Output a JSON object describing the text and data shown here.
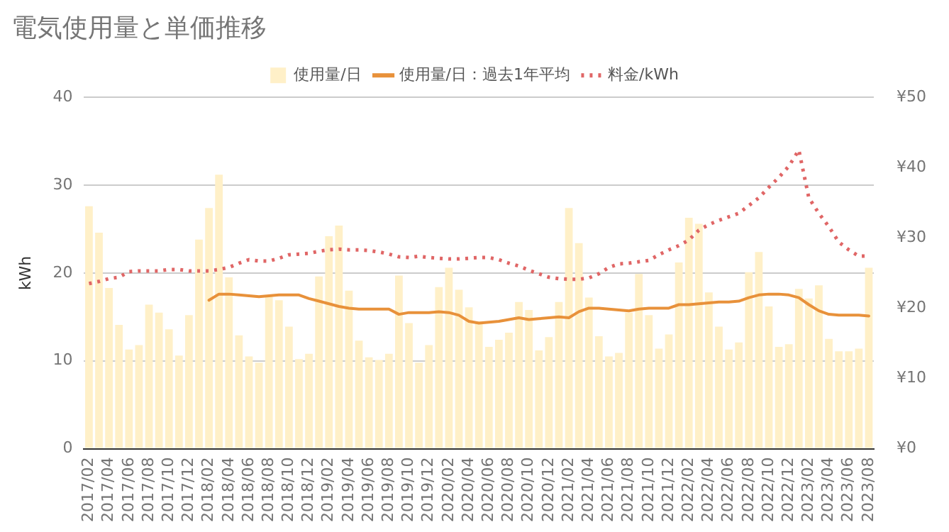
{
  "chart_data": {
    "type": "bar",
    "title": "電気使用量と単価推移",
    "ylabel": "kWh",
    "categories": [
      "2017/02",
      null,
      "2017/04",
      null,
      "2017/06",
      null,
      "2017/08",
      null,
      "2017/10",
      null,
      "2017/12",
      null,
      "2018/02",
      null,
      "2018/04",
      null,
      "2018/06",
      null,
      "2018/08",
      null,
      "2018/10",
      null,
      "2018/12",
      null,
      "2019/02",
      null,
      "2019/04",
      null,
      "2019/06",
      null,
      "2019/08",
      null,
      "2019/10",
      null,
      "2019/12",
      null,
      "2020/02",
      null,
      "2020/04",
      null,
      "2020/06",
      null,
      "2020/08",
      null,
      "2020/10",
      null,
      "2020/12",
      null,
      "2021/02",
      null,
      "2021/04",
      null,
      "2021/06",
      null,
      "2021/08",
      null,
      "2021/10",
      null,
      "2021/12",
      null,
      "2022/02",
      null,
      "2022/04",
      null,
      "2022/06",
      null,
      "2022/08",
      null,
      "2022/10",
      null,
      "2022/12",
      null,
      "2023/02",
      null,
      "2023/04",
      null,
      "2023/06",
      null,
      "2023/08"
    ],
    "series": [
      {
        "name": "使用量/日",
        "color": "#fff0c8",
        "values": [
          27.6,
          24.6,
          18.3,
          14.1,
          11.3,
          11.8,
          16.4,
          15.5,
          13.6,
          10.6,
          15.2,
          23.8,
          27.4,
          31.2,
          19.5,
          12.9,
          10.5,
          9.8,
          17.3,
          16.9,
          13.9,
          10.2,
          10.8,
          19.6,
          24.2,
          25.4,
          18.0,
          12.3,
          10.4,
          10.1,
          10.8,
          19.7,
          14.3,
          9.8,
          11.8,
          18.4,
          20.6,
          18.1,
          16.1,
          14.5,
          11.6,
          12.4,
          13.2,
          16.7,
          15.8,
          11.2,
          12.7,
          16.7,
          27.4,
          23.4,
          17.2,
          12.8,
          10.5,
          10.9,
          15.5,
          19.9,
          15.2,
          11.4,
          13.0,
          21.2,
          26.3,
          25.6,
          17.8,
          13.9,
          11.3,
          12.1,
          20.1,
          22.4,
          16.2,
          11.6,
          11.9,
          18.2,
          17.1,
          18.6,
          12.5,
          11.1,
          11.1,
          11.4,
          20.6
        ]
      },
      {
        "name": "使用量/日：過去1年平均",
        "type": "line",
        "color": "#e8913a",
        "line_style": "solid",
        "marker": "none",
        "values": [
          null,
          null,
          null,
          null,
          null,
          null,
          null,
          null,
          null,
          null,
          null,
          null,
          16.9,
          17.6,
          17.6,
          17.5,
          17.4,
          17.3,
          17.4,
          17.5,
          17.5,
          17.5,
          17.1,
          16.8,
          16.5,
          16.2,
          16.0,
          15.9,
          15.9,
          15.9,
          15.9,
          15.3,
          15.5,
          15.5,
          15.5,
          15.6,
          15.5,
          15.2,
          14.5,
          14.3,
          14.4,
          14.5,
          14.7,
          14.9,
          14.7,
          14.8,
          14.9,
          15.0,
          14.9,
          15.6,
          16.0,
          16.0,
          15.9,
          15.8,
          15.7,
          15.9,
          16.0,
          16.0,
          16.0,
          16.4,
          16.4,
          16.5,
          16.6,
          16.7,
          16.7,
          16.8,
          17.2,
          17.5,
          17.6,
          17.6,
          17.5,
          17.2,
          16.4,
          15.7,
          15.3,
          15.2,
          15.2,
          15.2,
          15.1
        ]
      },
      {
        "name": "料金/kWh",
        "type": "line",
        "axis": "y2",
        "color": "#e06666",
        "line_style": "dotted",
        "marker": "none",
        "values": [
          23.5,
          23.8,
          24.2,
          24.4,
          25.2,
          25.3,
          25.3,
          25.3,
          25.5,
          25.5,
          25.3,
          25.3,
          25.3,
          25.5,
          25.8,
          26.4,
          26.9,
          26.7,
          26.7,
          27.1,
          27.6,
          27.7,
          27.8,
          28.1,
          28.3,
          28.4,
          28.3,
          28.3,
          28.2,
          28.0,
          27.7,
          27.3,
          27.2,
          27.4,
          27.2,
          27.1,
          27.0,
          27.0,
          27.1,
          27.2,
          27.2,
          26.9,
          26.4,
          26.0,
          25.4,
          24.9,
          24.4,
          24.2,
          24.1,
          24.1,
          24.3,
          24.9,
          25.8,
          26.3,
          26.4,
          26.6,
          26.8,
          27.6,
          28.3,
          28.9,
          29.7,
          31.1,
          31.9,
          32.5,
          33.0,
          33.5,
          34.6,
          35.7,
          37.2,
          38.6,
          40.2,
          42.5,
          35.7,
          33.5,
          31.6,
          29.4,
          28.3,
          27.4,
          27.4
        ]
      }
    ],
    "ylim": [
      0,
      40
    ],
    "yticks": [
      0,
      10,
      20,
      30,
      40
    ],
    "y2lim": [
      0,
      50
    ],
    "y2ticks": [
      {
        "value": 0,
        "label": "¥0"
      },
      {
        "value": 10,
        "label": "¥10"
      },
      {
        "value": 20,
        "label": "¥20"
      },
      {
        "value": 30,
        "label": "¥30"
      },
      {
        "value": 40,
        "label": "¥40"
      },
      {
        "value": 50,
        "label": "¥50"
      }
    ],
    "grid": "y",
    "legend": "top"
  }
}
